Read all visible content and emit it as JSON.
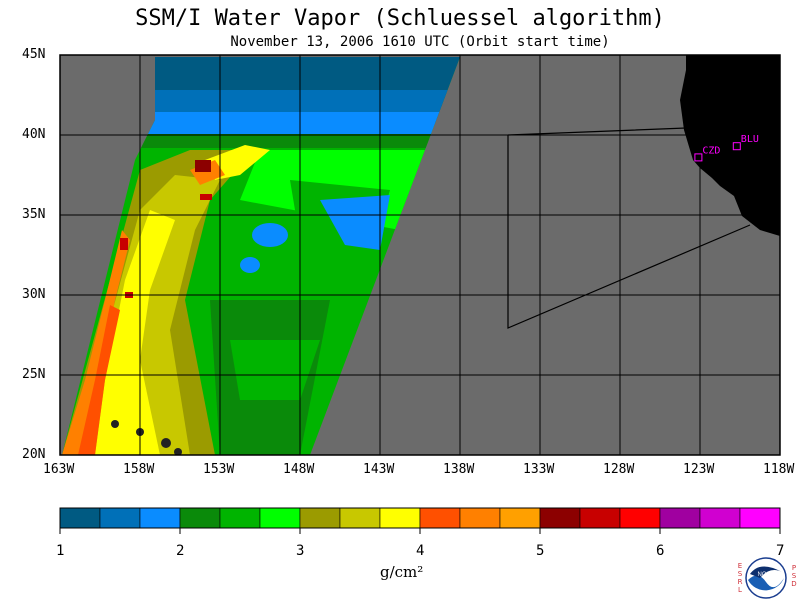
{
  "title": "SSM/I Water Vapor (Schluessel algorithm)",
  "subtitle": "November 13, 2006  1610 UTC  (Orbit start time)",
  "map": {
    "lat_labels": [
      "45N",
      "40N",
      "35N",
      "30N",
      "25N",
      "20N"
    ],
    "lon_labels": [
      "163W",
      "158W",
      "153W",
      "148W",
      "143W",
      "138W",
      "133W",
      "128W",
      "123W",
      "118W"
    ],
    "stations": [
      {
        "id": "CZD",
        "lon": -123.1,
        "lat": 38.6
      },
      {
        "id": "BLU",
        "lon": -120.7,
        "lat": 39.3
      }
    ],
    "colors": {
      "nodata": "#6b6b6b",
      "land": "#000000",
      "grid": "#000000",
      "station": "#ff00ff"
    }
  },
  "colorbar": {
    "colors": [
      "#005a82",
      "#0070b8",
      "#0a8cff",
      "#0a8a0a",
      "#00b400",
      "#00ff00",
      "#9b9b00",
      "#c8c800",
      "#ffff00",
      "#ff5000",
      "#ff8000",
      "#ffa000",
      "#8c0000",
      "#c80000",
      "#ff0000",
      "#a000a0",
      "#d000d0",
      "#ff00ff"
    ],
    "tick_labels": [
      "1",
      "2",
      "3",
      "4",
      "5",
      "6",
      "7"
    ],
    "unit": "g/cm²"
  },
  "logo": {
    "name": "NOAA",
    "left_text": "ESRL",
    "right_text": "PSD"
  }
}
